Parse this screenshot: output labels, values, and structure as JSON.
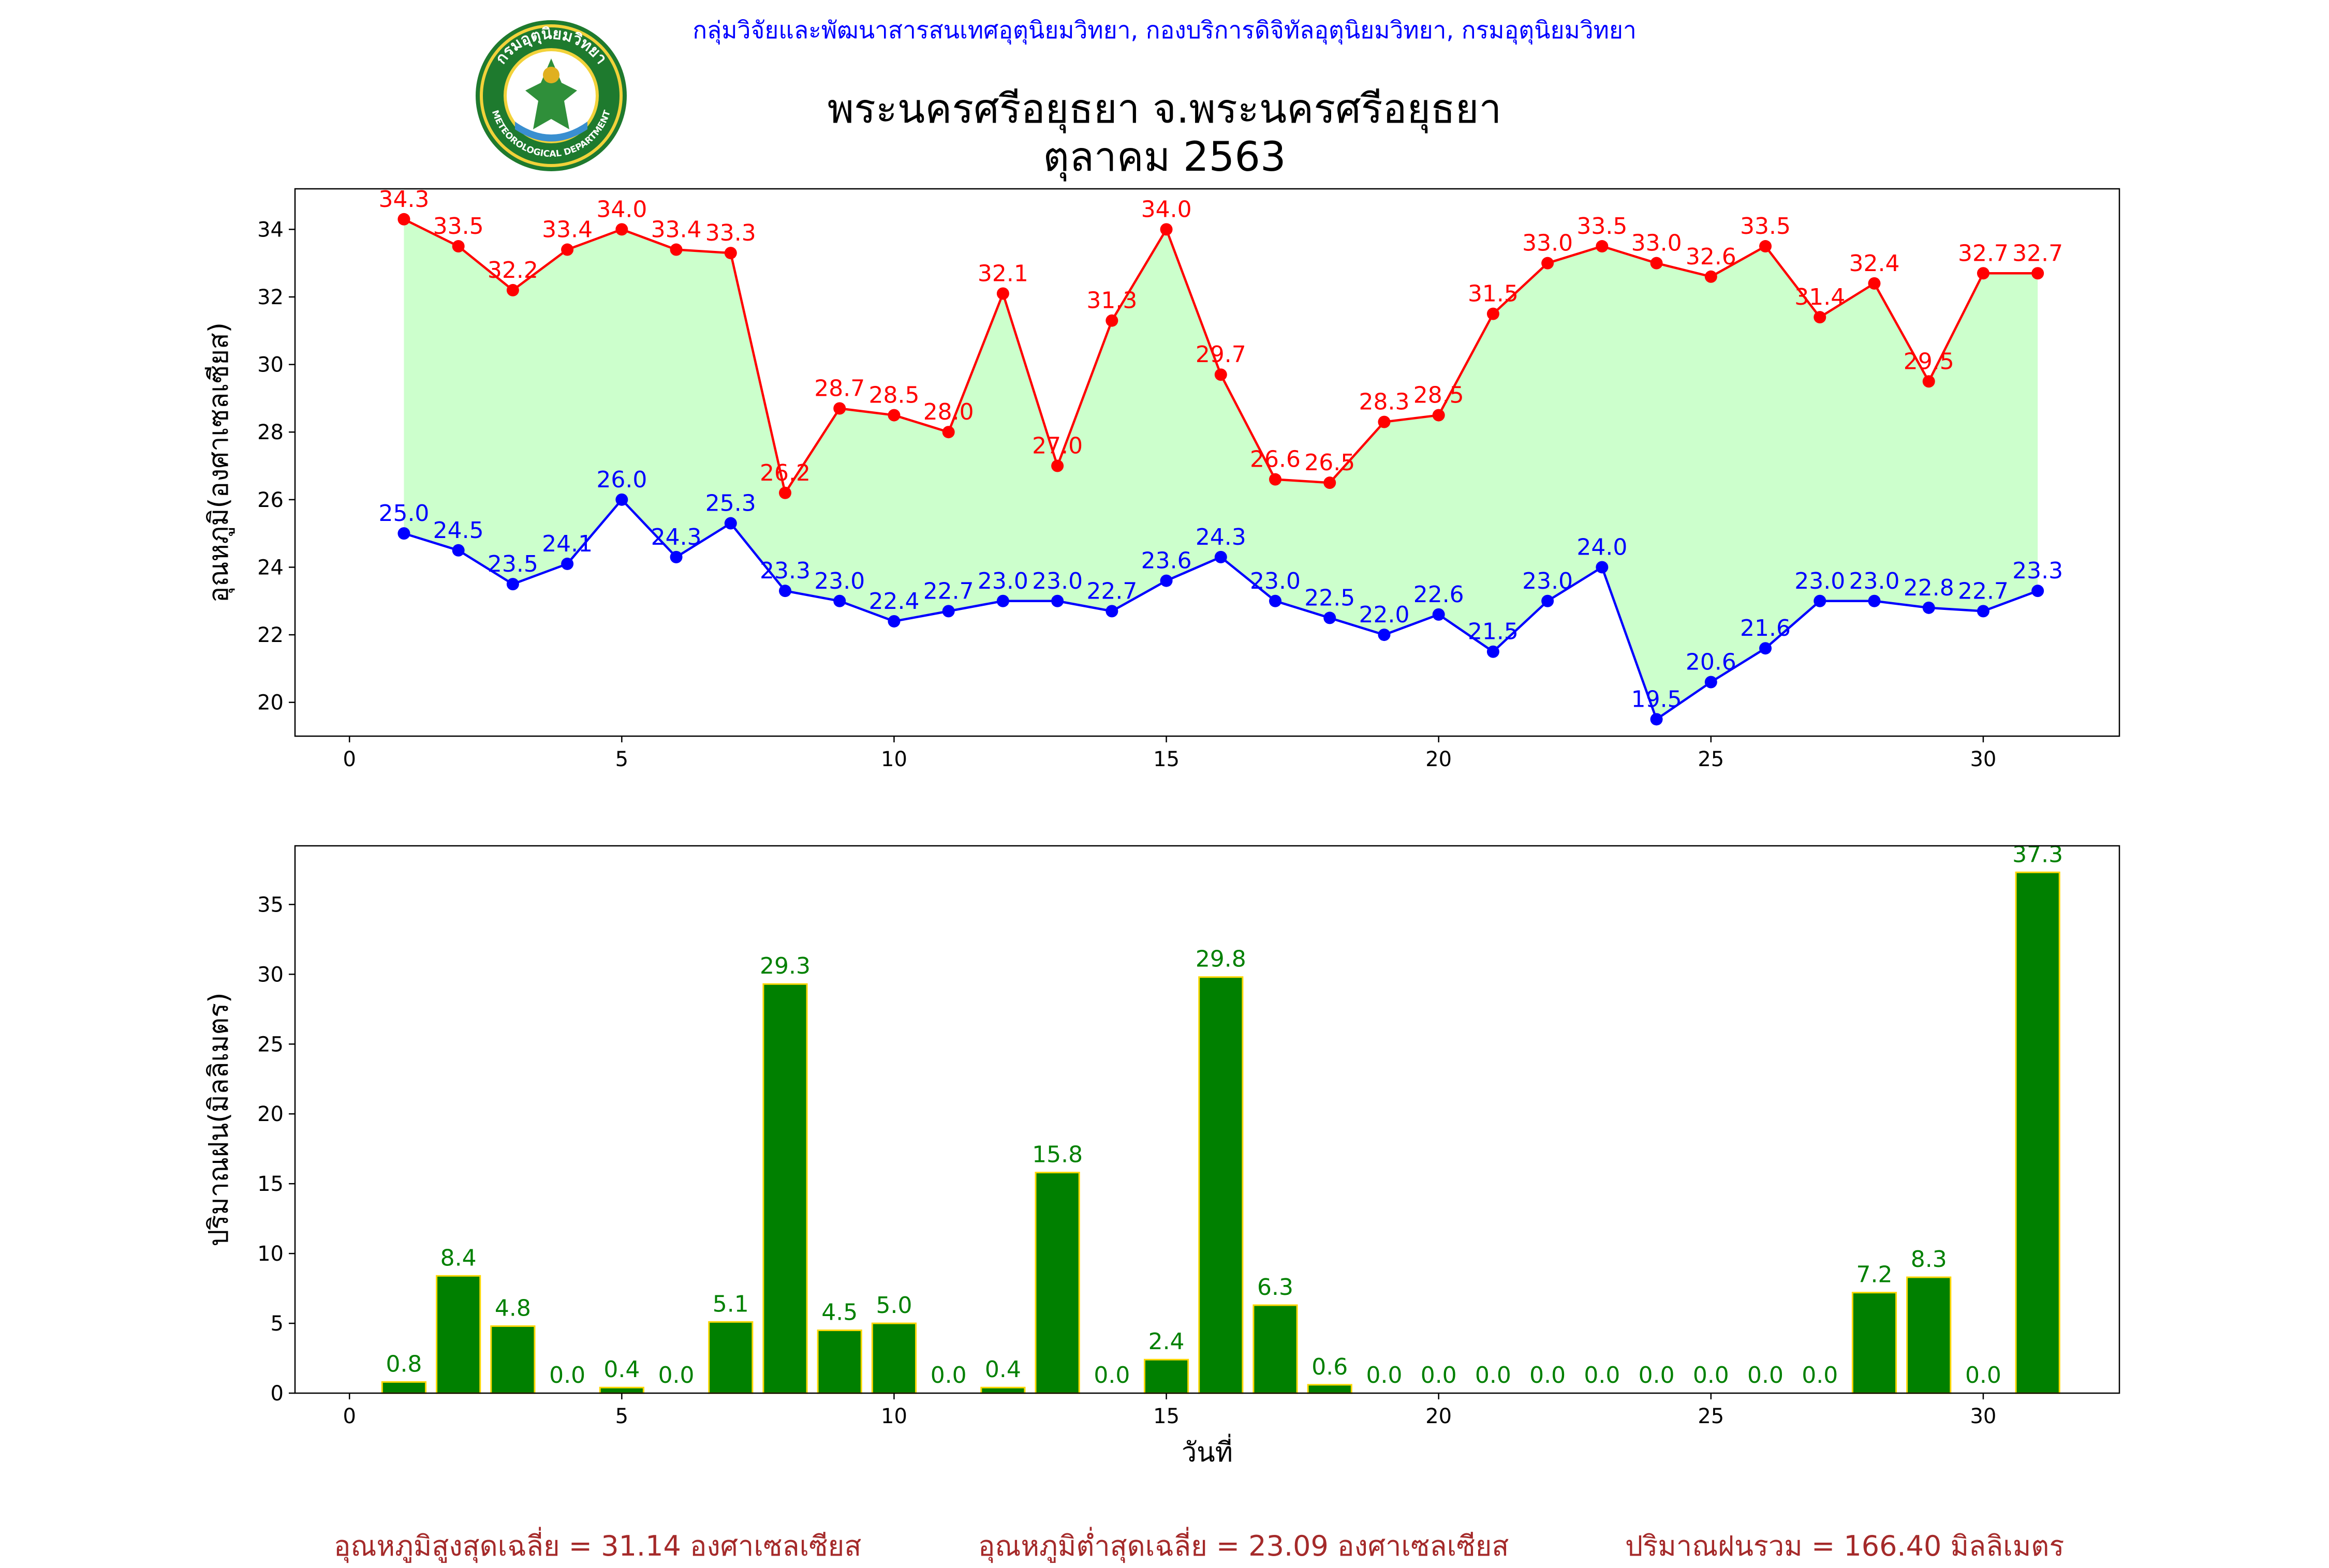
{
  "header": {
    "source_line": "กลุ่มวิจัยและพัฒนาสารสนเทศอุตุนิยมวิทยา, กองบริการดิจิทัลอุตุนิยมวิทยา, กรมอุตุนิยมวิทยา",
    "title_line1": "พระนครศรีอยุธยา จ.พระนครศรีอยุธยา",
    "title_line2": "ตุลาคม 2563",
    "logo_text_top": "กรมอุตุนิยมวิทยา",
    "logo_text_bottom": "METEOROLOGICAL DEPARTMENT"
  },
  "footer": {
    "avg_max": "อุณหภูมิสูงสุดเฉลี่ย = 31.14 องศาเซลเซียส",
    "avg_min": "อุณหภูมิต่ำสุดเฉลี่ย = 23.09 องศาเซลเซียส",
    "total_rain": "ปริมาณฝนรวม = 166.40 มิลลิเมตร"
  },
  "colors": {
    "max": "#ff0000",
    "min": "#0000ff",
    "fill": "#ccffcc",
    "bar": "#008000",
    "bar_edge": "#ffd700",
    "footer": "#a52a2a"
  },
  "chart_data": [
    {
      "type": "line",
      "title": "",
      "ylabel": "อุณหภูมิ(องศาเซลเซียส)",
      "xlabel": "",
      "xlim": [
        -1,
        32.5
      ],
      "ylim": [
        19.0,
        35.2
      ],
      "xticks": [
        0,
        5,
        10,
        15,
        20,
        25,
        30
      ],
      "yticks": [
        20,
        22,
        24,
        26,
        28,
        30,
        32,
        34
      ],
      "fill_between": true,
      "x": [
        1,
        2,
        3,
        4,
        5,
        6,
        7,
        8,
        9,
        10,
        11,
        12,
        13,
        14,
        15,
        16,
        17,
        18,
        19,
        20,
        21,
        22,
        23,
        24,
        25,
        26,
        27,
        28,
        29,
        30,
        31
      ],
      "series": [
        {
          "name": "max",
          "color": "#ff0000",
          "values": [
            34.3,
            33.5,
            32.2,
            33.4,
            34.0,
            33.4,
            33.3,
            26.2,
            28.7,
            28.5,
            28.0,
            32.1,
            27.0,
            31.3,
            34.0,
            29.7,
            26.6,
            26.5,
            28.3,
            28.5,
            31.5,
            33.0,
            33.5,
            33.0,
            32.6,
            33.5,
            31.4,
            32.4,
            29.5,
            32.7,
            32.7
          ]
        },
        {
          "name": "min",
          "color": "#0000ff",
          "values": [
            25.0,
            24.5,
            23.5,
            24.1,
            26.0,
            24.3,
            25.3,
            23.3,
            23.0,
            22.4,
            22.7,
            23.0,
            23.0,
            22.7,
            23.6,
            24.3,
            23.0,
            22.5,
            22.0,
            22.6,
            21.5,
            23.0,
            24.0,
            19.5,
            20.6,
            21.6,
            23.0,
            23.0,
            22.8,
            22.7,
            23.3
          ]
        }
      ]
    },
    {
      "type": "bar",
      "title": "",
      "ylabel": "ปริมาณฝน(มิลลิเมตร)",
      "xlabel": "วันที่",
      "xlim": [
        -1,
        32.5
      ],
      "ylim": [
        0,
        39.2
      ],
      "xticks": [
        0,
        5,
        10,
        15,
        20,
        25,
        30
      ],
      "yticks": [
        0,
        5,
        10,
        15,
        20,
        25,
        30,
        35
      ],
      "x": [
        1,
        2,
        3,
        4,
        5,
        6,
        7,
        8,
        9,
        10,
        11,
        12,
        13,
        14,
        15,
        16,
        17,
        18,
        19,
        20,
        21,
        22,
        23,
        24,
        25,
        26,
        27,
        28,
        29,
        30,
        31
      ],
      "values": [
        0.8,
        8.4,
        4.8,
        0.0,
        0.4,
        0.0,
        5.1,
        29.3,
        4.5,
        5.0,
        0.0,
        0.4,
        15.8,
        0.0,
        2.4,
        29.8,
        6.3,
        0.6,
        0.0,
        0.0,
        0.0,
        0.0,
        0.0,
        0.0,
        0.0,
        0.0,
        0.0,
        7.2,
        8.3,
        0.0,
        37.3
      ]
    }
  ]
}
